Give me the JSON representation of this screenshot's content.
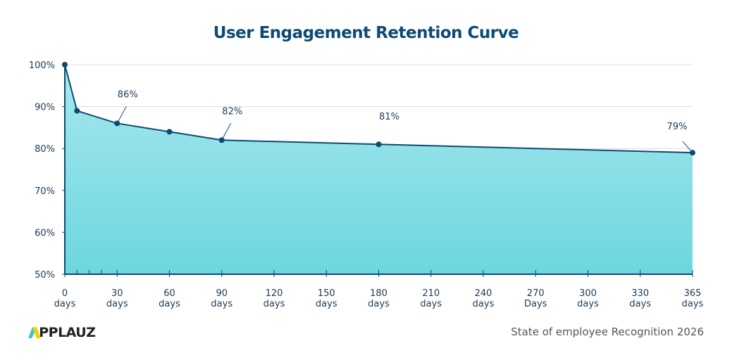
{
  "chart_data": {
    "type": "area",
    "title": "User Engagement Retention Curve",
    "x_ticks": [
      {
        "value": 0,
        "label": [
          "0",
          "days"
        ]
      },
      {
        "value": 30,
        "label": [
          "30",
          "days"
        ]
      },
      {
        "value": 60,
        "label": [
          "60",
          "days"
        ]
      },
      {
        "value": 90,
        "label": [
          "90",
          "days"
        ]
      },
      {
        "value": 120,
        "label": [
          "120",
          "days"
        ]
      },
      {
        "value": 150,
        "label": [
          "150",
          "days"
        ]
      },
      {
        "value": 180,
        "label": [
          "180",
          "days"
        ]
      },
      {
        "value": 210,
        "label": [
          "210",
          "days"
        ]
      },
      {
        "value": 240,
        "label": [
          "240",
          "days"
        ]
      },
      {
        "value": 270,
        "label": [
          "270",
          "Days"
        ]
      },
      {
        "value": 300,
        "label": [
          "300",
          "days"
        ]
      },
      {
        "value": 330,
        "label": [
          "330",
          "days"
        ]
      },
      {
        "value": 365,
        "label": [
          "365",
          "days"
        ]
      }
    ],
    "y_ticks": [
      "50%",
      "60%",
      "70%",
      "80%",
      "90%",
      "100%"
    ],
    "ylim": [
      50,
      100
    ],
    "gridlines": true,
    "points": [
      {
        "x": 0,
        "y": 100
      },
      {
        "x": 7,
        "y": 89
      },
      {
        "x": 30,
        "y": 86,
        "label": "86%"
      },
      {
        "x": 60,
        "y": 84
      },
      {
        "x": 90,
        "y": 82,
        "label": "82%"
      },
      {
        "x": 180,
        "y": 81,
        "label": "81%"
      },
      {
        "x": 365,
        "y": 79,
        "label": "79%"
      }
    ],
    "colors": {
      "line": "#0d4a73",
      "fill_top": "#a8e8ee",
      "fill_bottom": "#6dd6df",
      "title": "#0d4a73"
    }
  },
  "footer": {
    "brand": "APPLAUZ",
    "source": "State of employee Recognition 2026"
  }
}
